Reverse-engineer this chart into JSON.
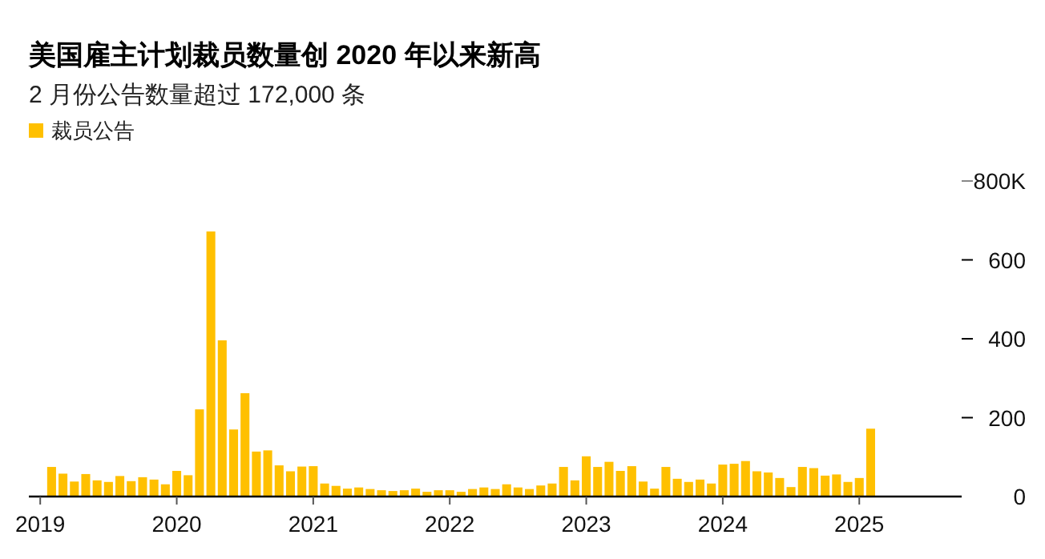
{
  "chart_data": {
    "type": "bar",
    "title": "美国雇主计划裁员数量创 2020 年以来新高",
    "subtitle": "2 月份公告数量超过 172,000 条",
    "x": [
      "2019-02",
      "2019-03",
      "2019-04",
      "2019-05",
      "2019-06",
      "2019-07",
      "2019-08",
      "2019-09",
      "2019-10",
      "2019-11",
      "2019-12",
      "2020-01",
      "2020-02",
      "2020-03",
      "2020-04",
      "2020-05",
      "2020-06",
      "2020-07",
      "2020-08",
      "2020-09",
      "2020-10",
      "2020-11",
      "2020-12",
      "2021-01",
      "2021-02",
      "2021-03",
      "2021-04",
      "2021-05",
      "2021-06",
      "2021-07",
      "2021-08",
      "2021-09",
      "2021-10",
      "2021-11",
      "2021-12",
      "2022-01",
      "2022-02",
      "2022-03",
      "2022-04",
      "2022-05",
      "2022-06",
      "2022-07",
      "2022-08",
      "2022-09",
      "2022-10",
      "2022-11",
      "2022-12",
      "2023-01",
      "2023-02",
      "2023-03",
      "2023-04",
      "2023-05",
      "2023-06",
      "2023-07",
      "2023-08",
      "2023-09",
      "2023-10",
      "2023-11",
      "2023-12",
      "2024-01",
      "2024-02",
      "2024-03",
      "2024-04",
      "2024-05",
      "2024-06",
      "2024-07",
      "2024-08",
      "2024-09",
      "2024-10",
      "2024-11",
      "2024-12",
      "2025-01",
      "2025-02"
    ],
    "series": [
      {
        "name": "裁员公告",
        "color": "#ffc000",
        "values": [
          75,
          58,
          38,
          57,
          41,
          37,
          52,
          39,
          49,
          43,
          31,
          65,
          54,
          221,
          672,
          396,
          170,
          262,
          114,
          117,
          79,
          64,
          76,
          77,
          33,
          27,
          20,
          23,
          19,
          16,
          14,
          16,
          20,
          12,
          16,
          16,
          12,
          19,
          23,
          19,
          31,
          23,
          19,
          28,
          33,
          75,
          41,
          102,
          75,
          88,
          65,
          77,
          38,
          20,
          75,
          45,
          37,
          43,
          33,
          81,
          83,
          90,
          64,
          61,
          47,
          24,
          75,
          72,
          53,
          56,
          37,
          47,
          172
        ]
      }
    ],
    "xlim": [
      "2018-12",
      "2025-10"
    ],
    "xticks": [
      {
        "value": "2019-01",
        "label": "2019"
      },
      {
        "value": "2020-01",
        "label": "2020"
      },
      {
        "value": "2021-01",
        "label": "2021"
      },
      {
        "value": "2022-01",
        "label": "2022"
      },
      {
        "value": "2023-01",
        "label": "2023"
      },
      {
        "value": "2024-01",
        "label": "2024"
      },
      {
        "value": "2025-01",
        "label": "2025"
      }
    ],
    "ylim": [
      0,
      800
    ],
    "yticks": [
      0,
      200,
      400,
      600,
      {
        "value": 800,
        "label": "800K"
      }
    ],
    "legend": "top left",
    "grid": false
  }
}
